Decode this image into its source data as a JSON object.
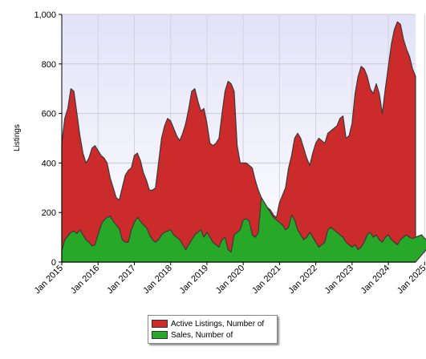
{
  "chart_data": {
    "type": "area",
    "ylabel": "Listings",
    "ylim": [
      0,
      1000
    ],
    "yticks": [
      "0",
      "200",
      "400",
      "600",
      "800",
      "1,000"
    ],
    "xticks": [
      "Jan 2015",
      "Jan 2016",
      "Jan 2017",
      "Jan 2018",
      "Jan 2019",
      "Jan 2020",
      "Jan 2021",
      "Jan 2022",
      "Jan 2023",
      "Jan 2024",
      "Jan 2025"
    ],
    "x_start": "2015-01",
    "x_step": "month",
    "grid": true,
    "legend_position": "bottom",
    "series": [
      {
        "name": "Active Listings, Number of",
        "color": "#cc2b2b",
        "values": [
          480,
          580,
          620,
          700,
          690,
          600,
          510,
          440,
          400,
          420,
          460,
          470,
          450,
          430,
          420,
          400,
          340,
          300,
          260,
          250,
          300,
          350,
          370,
          380,
          430,
          440,
          410,
          360,
          330,
          290,
          290,
          300,
          400,
          500,
          550,
          580,
          570,
          540,
          510,
          490,
          520,
          560,
          620,
          690,
          700,
          650,
          610,
          620,
          560,
          480,
          470,
          480,
          500,
          600,
          690,
          730,
          720,
          690,
          470,
          400,
          400,
          400,
          390,
          380,
          330,
          290,
          260,
          240,
          220,
          210,
          190,
          180,
          240,
          270,
          300,
          380,
          430,
          500,
          520,
          500,
          460,
          420,
          390,
          440,
          480,
          500,
          490,
          480,
          520,
          530,
          540,
          550,
          580,
          590,
          500,
          510,
          560,
          680,
          750,
          790,
          780,
          750,
          700,
          680,
          720,
          680,
          600,
          700,
          790,
          880,
          940,
          970,
          960,
          900,
          860,
          830,
          780,
          750
        ]
      },
      {
        "name": "Sales, Number of",
        "color": "#28a828",
        "values": [
          45,
          90,
          105,
          120,
          125,
          115,
          130,
          110,
          90,
          80,
          65,
          70,
          110,
          150,
          170,
          180,
          185,
          165,
          150,
          135,
          90,
          80,
          80,
          130,
          160,
          180,
          165,
          150,
          140,
          110,
          90,
          80,
          90,
          110,
          120,
          125,
          130,
          110,
          100,
          90,
          70,
          50,
          70,
          90,
          110,
          120,
          130,
          100,
          120,
          100,
          80,
          70,
          60,
          90,
          100,
          50,
          40,
          110,
          120,
          130,
          170,
          175,
          165,
          110,
          100,
          120,
          260,
          240,
          220,
          200,
          180,
          170,
          160,
          150,
          130,
          140,
          190,
          170,
          130,
          110,
          90,
          100,
          120,
          100,
          80,
          60,
          70,
          80,
          130,
          140,
          130,
          120,
          110,
          100,
          80,
          70,
          60,
          70,
          50,
          60,
          80,
          110,
          120,
          100,
          110,
          90,
          80,
          100,
          110,
          90,
          80,
          70,
          90,
          100,
          110,
          100,
          95,
          100,
          105,
          110,
          95,
          90,
          85,
          85
        ]
      }
    ]
  }
}
